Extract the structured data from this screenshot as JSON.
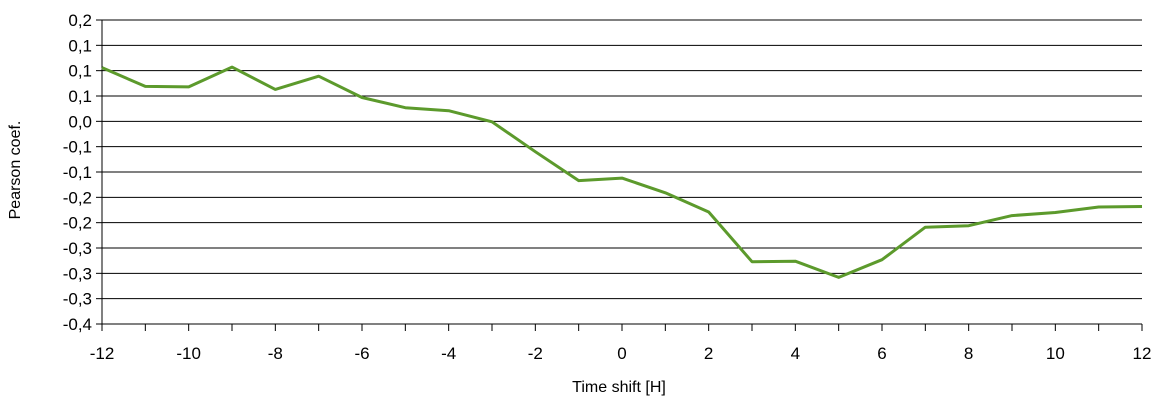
{
  "chart_data": {
    "type": "line",
    "xlabel": "Time shift [H]",
    "ylabel": "Pearson coef.",
    "xlim": [
      -12,
      12
    ],
    "ylim": [
      -0.4,
      0.2
    ],
    "grid": "horizontal",
    "x_ticks": [
      -12,
      -10,
      -8,
      -6,
      -4,
      -2,
      0,
      2,
      4,
      6,
      8,
      10,
      12
    ],
    "x_tick_labels": [
      "-12",
      "-10",
      "-8",
      "-6",
      "-4",
      "-2",
      "0",
      "2",
      "4",
      "6",
      "8",
      "10",
      "12"
    ],
    "y_ticks": [
      0.2,
      0.15,
      0.1,
      0.05,
      0.0,
      -0.05,
      -0.1,
      -0.15,
      -0.2,
      -0.25,
      -0.3,
      -0.35,
      -0.4
    ],
    "y_tick_labels": [
      "0,2",
      "0,1",
      "0,1",
      "0,1",
      "0,0",
      "-0,1",
      "-0,1",
      "-0,2",
      "-0,2",
      "-0,3",
      "-0,3",
      "-0,3",
      "-0,4"
    ],
    "series": [
      {
        "color": "#5c9a2c",
        "x": [
          -12,
          -11,
          -10,
          -9,
          -8,
          -7,
          -6,
          -5,
          -4,
          -3,
          -2,
          -1,
          0,
          1,
          2,
          3,
          4,
          5,
          6,
          7,
          8,
          9,
          10,
          11,
          12
        ],
        "y": [
          0.106,
          0.069,
          0.068,
          0.107,
          0.063,
          0.089,
          0.047,
          0.027,
          0.021,
          -0.001,
          -0.06,
          -0.117,
          -0.112,
          -0.141,
          -0.179,
          -0.277,
          -0.276,
          -0.308,
          -0.273,
          -0.209,
          -0.206,
          -0.186,
          -0.18,
          -0.169,
          -0.168
        ]
      }
    ]
  }
}
